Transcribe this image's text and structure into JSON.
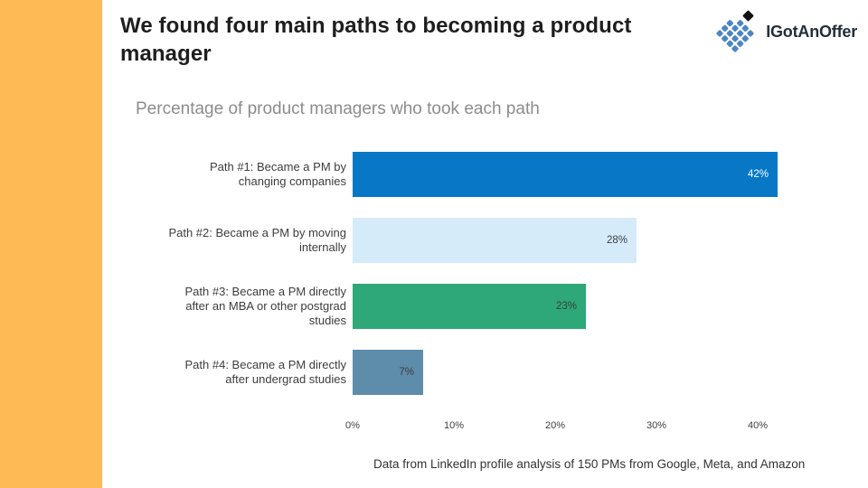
{
  "slide": {
    "title": "We found four main paths to becoming a product manager",
    "footer": "Data from LinkedIn profile analysis of 150 PMs from Google, Meta, and Amazon"
  },
  "logo": {
    "text": "IGotAnOffer"
  },
  "theme": {
    "accent_band": "#FDBA55",
    "logo_blue": "#4A85C7",
    "logo_dot": "#121212",
    "title_color": "#1E1E1E",
    "chart_title_color": "#8C8C8C"
  },
  "chart_data": {
    "type": "bar",
    "orientation": "horizontal",
    "title": "Percentage of product managers who took each path",
    "categories": [
      "Path #1: Became a PM by changing companies",
      "Path #2: Became a PM by moving internally",
      "Path #3: Became a PM directly after an MBA or other postgrad studies",
      "Path #4: Became a PM directly after undergrad studies"
    ],
    "categories_display": [
      "Path #1: Became a PM by\nchanging companies",
      "Path #2: Became a PM by moving\ninternally",
      "Path #3: Became a PM directly\nafter an MBA or other postgrad\nstudies",
      "Path #4: Became a PM directly\nafter undergrad studies"
    ],
    "values": [
      42,
      28,
      23,
      7
    ],
    "value_labels": [
      "42%",
      "28%",
      "23%",
      "7%"
    ],
    "bar_colors": [
      "#0878C6",
      "#D6EBFA",
      "#2EA878",
      "#5E8CAB"
    ],
    "value_label_colors": [
      "#FFFFFF",
      "#3D3D3D",
      "#3D3D3D",
      "#3D3D3D"
    ],
    "xticks": [
      "0%",
      "10%",
      "20%",
      "30%",
      "40%"
    ],
    "xlim": [
      0,
      44
    ],
    "unit": "percent",
    "grid": false,
    "legend_position": "none"
  }
}
